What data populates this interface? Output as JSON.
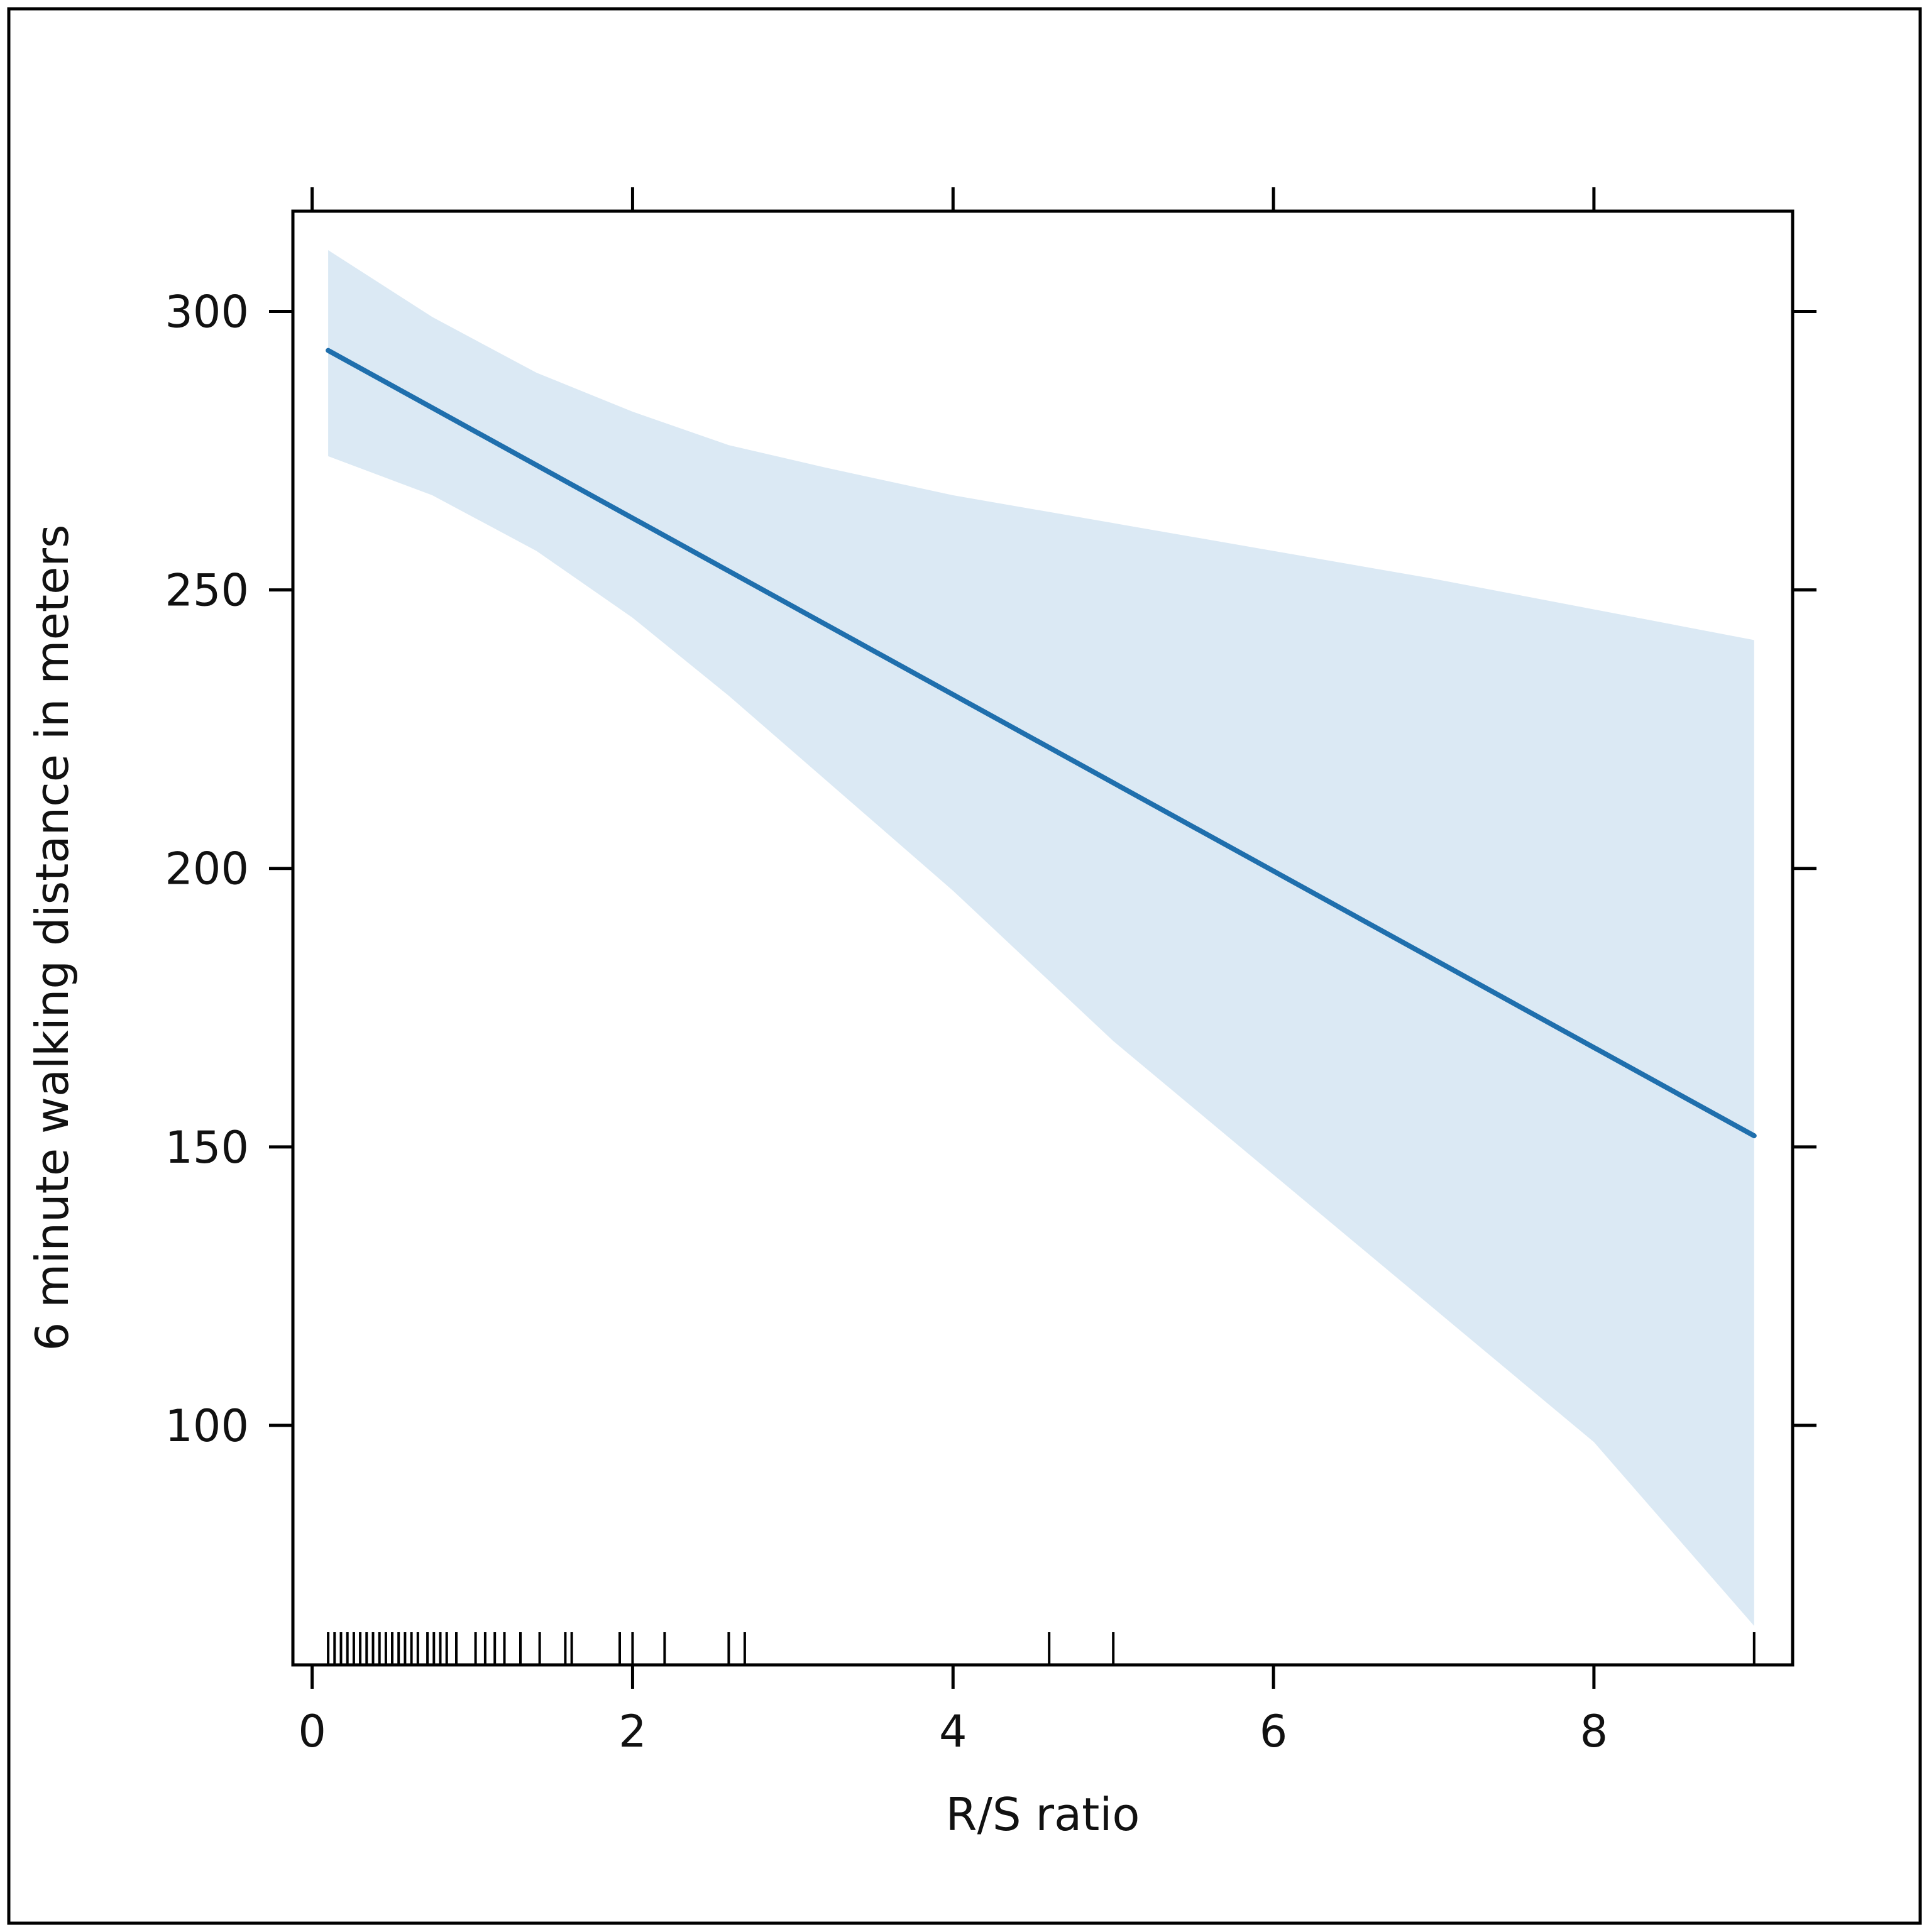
{
  "chart_data": {
    "type": "line",
    "title": "",
    "xlabel": "R/S ratio",
    "ylabel": "6 minute walking distance in meters",
    "xlim": [
      -0.12,
      9.24
    ],
    "ylim": [
      57,
      318
    ],
    "x_ticks": [
      0,
      2,
      4,
      6,
      8
    ],
    "x_tick_labels": [
      "0",
      "2",
      "4",
      "6",
      "8"
    ],
    "y_ticks": [
      100,
      150,
      200,
      250,
      300
    ],
    "y_tick_labels": [
      "100",
      "150",
      "200",
      "250",
      "300"
    ],
    "grid": false,
    "legend": "none",
    "colors": {
      "line": "#1f6fad",
      "band": "#dbe9f4",
      "frame": "#000000",
      "rug": "#000000"
    },
    "series": [
      {
        "x": [
          0.1,
          9.0
        ],
        "y": [
          293,
          152
        ]
      }
    ],
    "band": {
      "x": [
        0.1,
        0.75,
        1.4,
        2.0,
        2.6,
        3.2,
        4.0,
        5.0,
        6.0,
        7.0,
        8.0,
        9.0
      ],
      "upper": [
        311,
        299,
        289,
        282,
        276,
        272,
        267,
        262,
        257,
        252,
        246.5,
        241
      ],
      "lower": [
        274,
        267,
        257,
        245,
        231,
        216,
        196,
        169,
        145,
        121,
        97,
        64
      ]
    },
    "rug_x": [
      0.1,
      0.14,
      0.18,
      0.22,
      0.26,
      0.3,
      0.34,
      0.38,
      0.42,
      0.46,
      0.5,
      0.54,
      0.58,
      0.62,
      0.66,
      0.72,
      0.76,
      0.8,
      0.84,
      0.9,
      1.02,
      1.08,
      1.14,
      1.2,
      1.3,
      1.42,
      1.58,
      1.62,
      1.92,
      2.0,
      2.2,
      2.6,
      2.7,
      4.6,
      5.0,
      9.0
    ]
  }
}
